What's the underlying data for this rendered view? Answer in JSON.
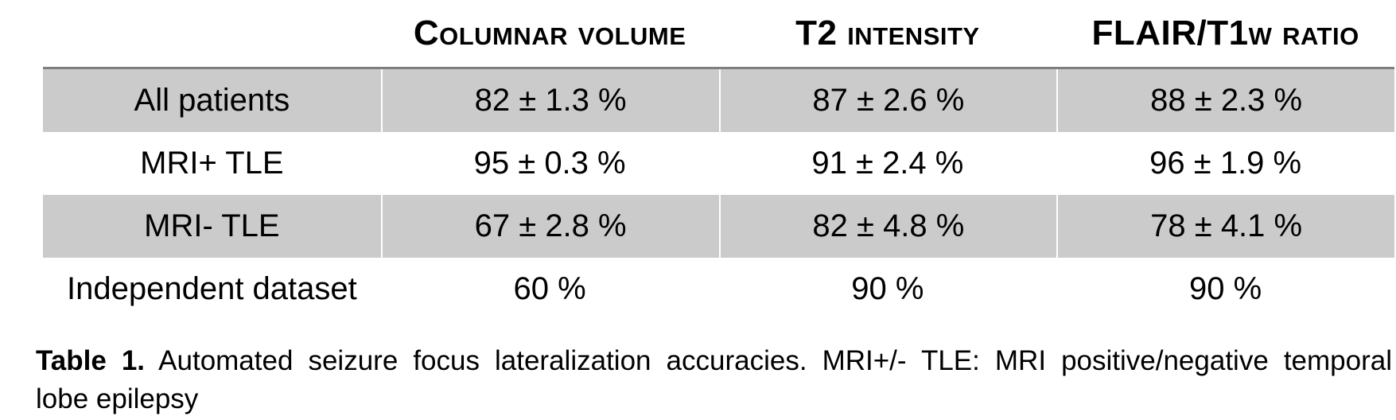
{
  "table": {
    "columns": [
      {
        "label": "Columnar volume"
      },
      {
        "label": "T2 intensity"
      },
      {
        "label": "FLAIR/T1w ratio"
      }
    ],
    "rows": [
      {
        "label": "All patients",
        "values": [
          "82 ± 1.3 %",
          "87 ± 2.6 %",
          "88 ± 2.3 %"
        ]
      },
      {
        "label": "MRI+ TLE",
        "values": [
          "95 ± 0.3 %",
          "91 ± 2.4 %",
          "96 ± 1.9 %"
        ]
      },
      {
        "label": "MRI- TLE",
        "values": [
          "67 ± 2.8 %",
          "82 ± 4.8 %",
          "78 ± 4.1 %"
        ]
      },
      {
        "label": "Independent dataset",
        "values": [
          "60 %",
          "90 %",
          "90 %"
        ]
      }
    ]
  },
  "caption": {
    "label": "Table 1.",
    "line1": "Automated seizure focus lateralization accuracies. MRI+/- TLE: MRI positive/negative temporal",
    "line2": "lobe epilepsy"
  },
  "colors": {
    "row_shade": "#cbcbcb",
    "header_rule": "#7f7f7f",
    "column_separator": "#ffffff"
  }
}
